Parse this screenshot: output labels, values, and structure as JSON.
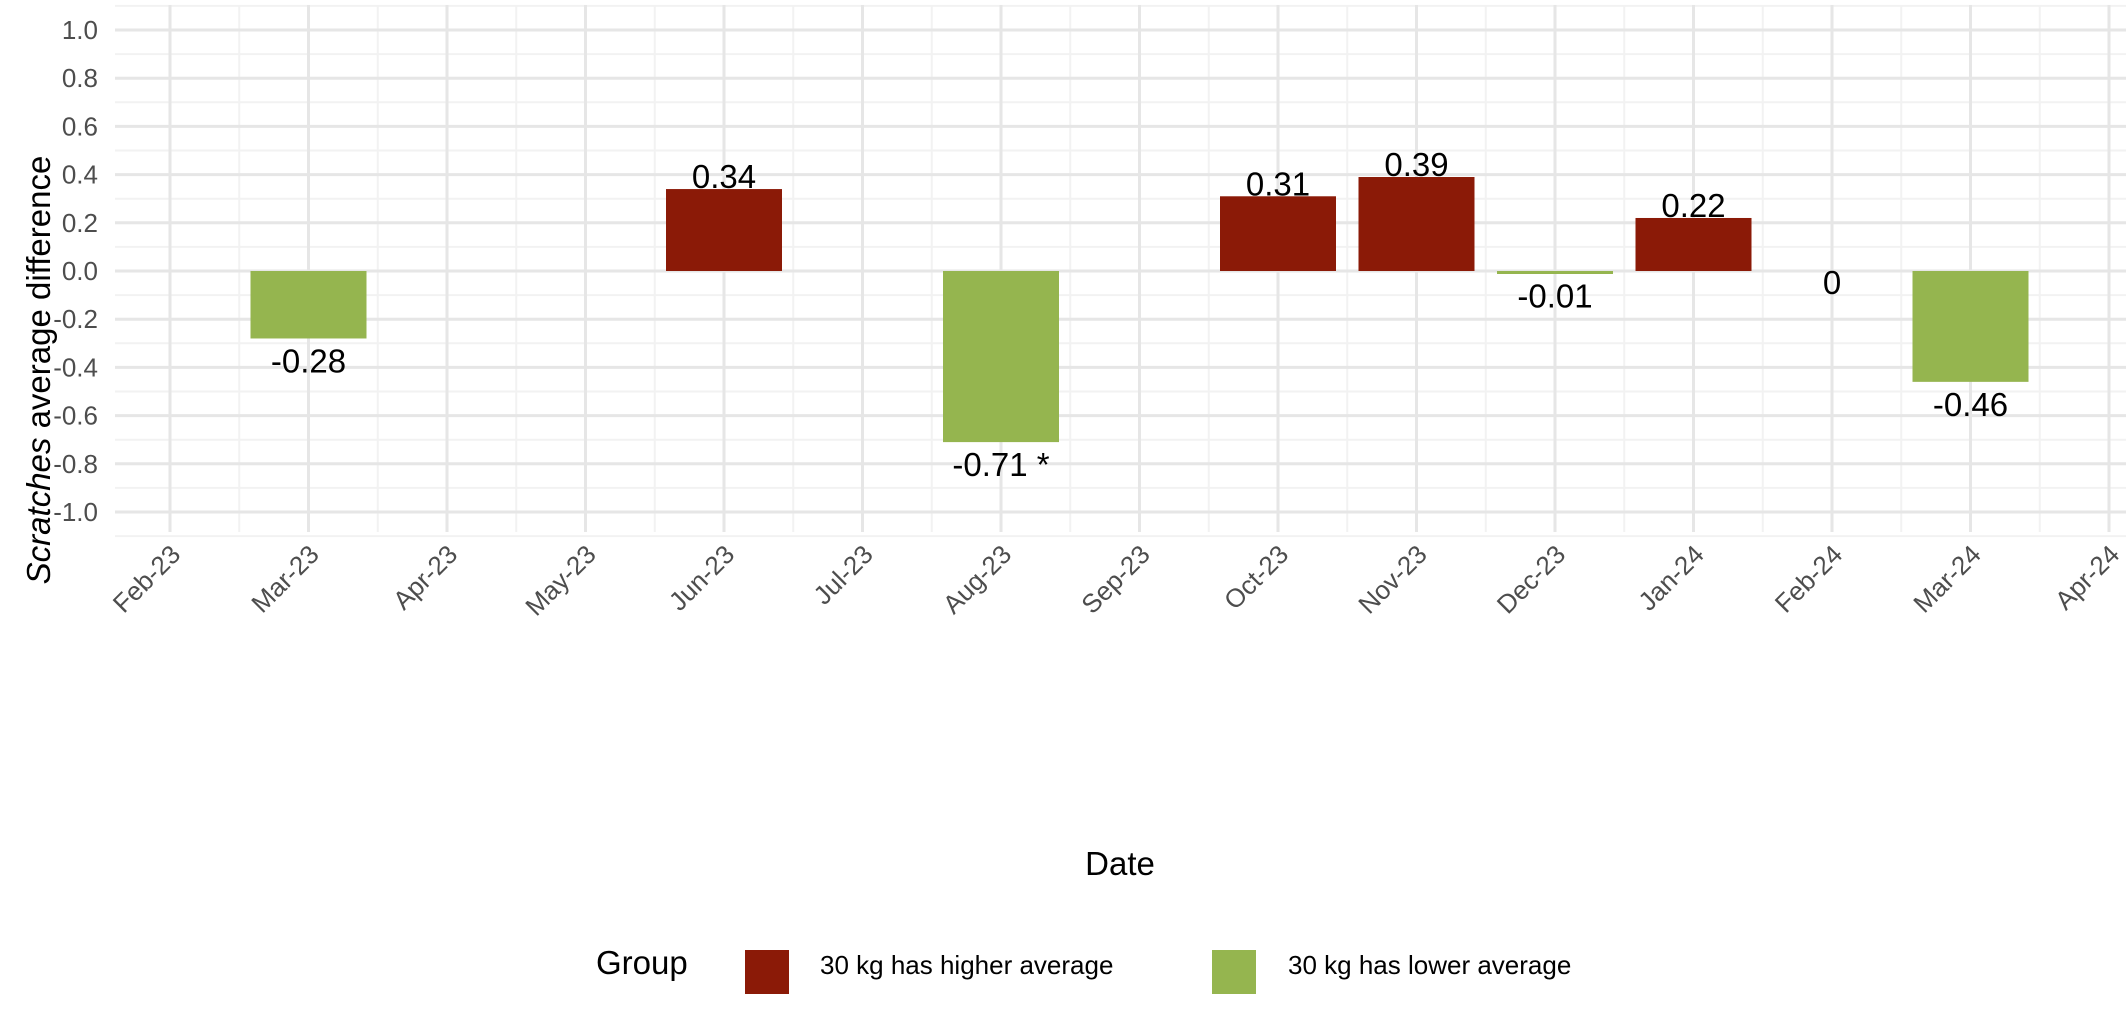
{
  "chart_data": {
    "type": "bar",
    "x_tick_labels": [
      "Feb-23",
      "Mar-23",
      "Apr-23",
      "May-23",
      "Jun-23",
      "Jul-23",
      "Aug-23",
      "Sep-23",
      "Oct-23",
      "Nov-23",
      "Dec-23",
      "Jan-24",
      "Feb-24",
      "Mar-24",
      "Apr-24"
    ],
    "y_ticks": [
      -1.0,
      -0.8,
      -0.6,
      -0.4,
      -0.2,
      0.0,
      0.2,
      0.4,
      0.6,
      0.8,
      1.0
    ],
    "y_tick_labels": [
      "-1.0",
      "-0.8",
      "-0.6",
      "-0.4",
      "-0.2",
      "0.0",
      "0.2",
      "0.4",
      "0.6",
      "0.8",
      "1.0"
    ],
    "ylim": [
      -1.1,
      1.1
    ],
    "xlabel": "Date",
    "ylabel_italic": "Scratches",
    "ylabel_rest": " average difference",
    "grid": true,
    "legend_position": "bottom",
    "bars": [
      {
        "date": "Mar-23",
        "value": -0.28,
        "label": "-0.28",
        "group": "lower"
      },
      {
        "date": "Jun-23",
        "value": 0.34,
        "label": "0.34",
        "group": "higher"
      },
      {
        "date": "Aug-23",
        "value": -0.71,
        "label": "-0.71 *",
        "group": "lower"
      },
      {
        "date": "Oct-23",
        "value": 0.31,
        "label": "0.31",
        "group": "higher"
      },
      {
        "date": "Nov-23",
        "value": 0.39,
        "label": "0.39",
        "group": "higher"
      },
      {
        "date": "Dec-23",
        "value": -0.01,
        "label": "-0.01",
        "group": "lower"
      },
      {
        "date": "Jan-24",
        "value": 0.22,
        "label": "0.22",
        "group": "higher"
      },
      {
        "date": "Feb-24",
        "value": 0,
        "label": "0",
        "group": "none"
      },
      {
        "date": "Mar-24",
        "value": -0.46,
        "label": "-0.46",
        "group": "lower"
      }
    ],
    "legend": {
      "title": "Group",
      "items": [
        {
          "key": "higher",
          "label": "30 kg has higher average",
          "color": "#8b1a07"
        },
        {
          "key": "lower",
          "label": "30 kg has lower average",
          "color": "#95b54f"
        }
      ]
    }
  }
}
